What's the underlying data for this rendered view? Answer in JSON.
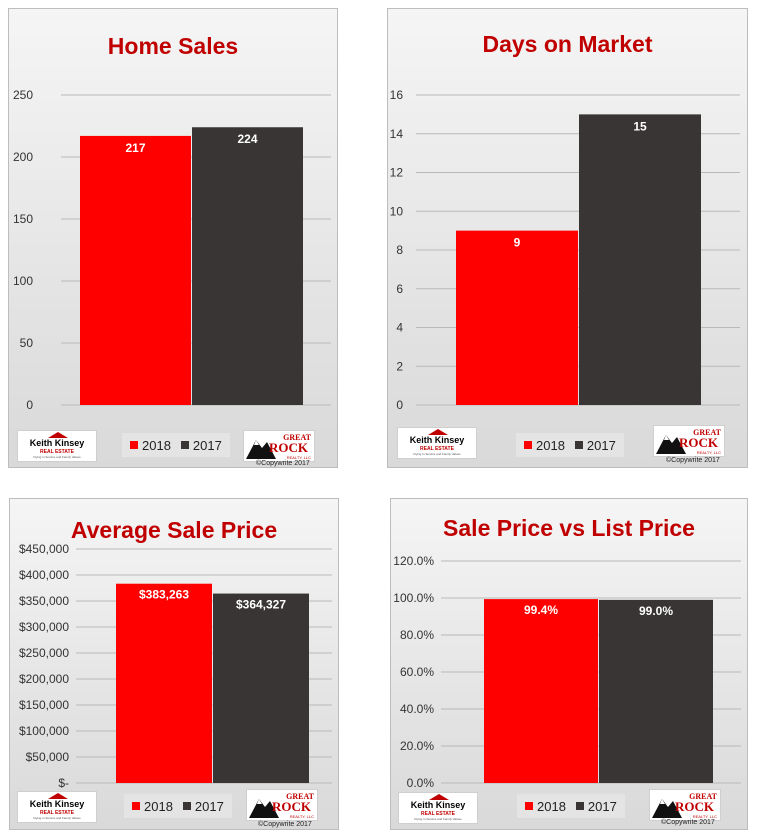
{
  "colors": {
    "series_2018": "#ff0000",
    "series_2017": "#3a3535",
    "title": "#c00000"
  },
  "branding": {
    "left_logo": {
      "name": "Keith Kinsey",
      "subtitle": "REAL ESTATE",
      "tagline": "Flying in Service and Family Values"
    },
    "right_logo": {
      "line1": "GREAT",
      "line2": "ROCK",
      "line3": "REALTY, LLC",
      "icon": "mountain-icon"
    },
    "copyright": "©Copywrite 2017"
  },
  "chart_data": [
    {
      "type": "bar",
      "title": "Home Sales",
      "series": [
        {
          "name": "2018",
          "values": [
            217
          ]
        },
        {
          "name": "2017",
          "values": [
            224
          ]
        }
      ],
      "data_labels": [
        "217",
        "224"
      ],
      "ylim": [
        0,
        250
      ],
      "yticks": [
        0,
        50,
        100,
        150,
        200,
        250
      ],
      "ytick_labels": [
        "0",
        "50",
        "100",
        "150",
        "200",
        "250"
      ],
      "grid": true,
      "legend": "bottom"
    },
    {
      "type": "bar",
      "title": "Days on Market",
      "series": [
        {
          "name": "2018",
          "values": [
            9
          ]
        },
        {
          "name": "2017",
          "values": [
            15
          ]
        }
      ],
      "data_labels": [
        "9",
        "15"
      ],
      "ylim": [
        0,
        16
      ],
      "yticks": [
        0,
        2,
        4,
        6,
        8,
        10,
        12,
        14,
        16
      ],
      "ytick_labels": [
        "0",
        "2",
        "4",
        "6",
        "8",
        "10",
        "12",
        "14",
        "16"
      ],
      "grid": true,
      "legend": "bottom"
    },
    {
      "type": "bar",
      "title": "Average Sale Price",
      "series": [
        {
          "name": "2018",
          "values": [
            383263
          ]
        },
        {
          "name": "2017",
          "values": [
            364327
          ]
        }
      ],
      "data_labels": [
        "$383,263",
        "$364,327"
      ],
      "ylim": [
        0,
        450000
      ],
      "yticks": [
        0,
        50000,
        100000,
        150000,
        200000,
        250000,
        300000,
        350000,
        400000,
        450000
      ],
      "ytick_labels": [
        "$-",
        "$50,000",
        "$100,000",
        "$150,000",
        "$200,000",
        "$250,000",
        "$300,000",
        "$350,000",
        "$400,000",
        "$450,000"
      ],
      "grid": true,
      "legend": "bottom"
    },
    {
      "type": "bar",
      "title": "Sale Price vs List Price",
      "series": [
        {
          "name": "2018",
          "values": [
            99.4
          ]
        },
        {
          "name": "2017",
          "values": [
            99.0
          ]
        }
      ],
      "data_labels": [
        "99.4%",
        "99.0%"
      ],
      "ylim": [
        0,
        120
      ],
      "yticks": [
        0,
        20,
        40,
        60,
        80,
        100,
        120
      ],
      "ytick_labels": [
        "0.0%",
        "20.0%",
        "40.0%",
        "60.0%",
        "80.0%",
        "100.0%",
        "120.0%"
      ],
      "grid": true,
      "legend": "bottom"
    }
  ]
}
